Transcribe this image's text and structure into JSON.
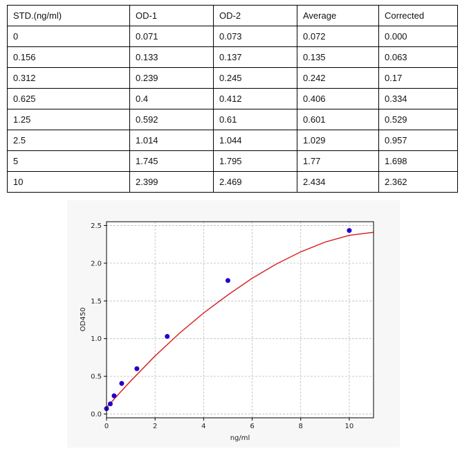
{
  "table": {
    "headers": [
      "STD.(ng/ml)",
      "OD-1",
      "OD-2",
      "Average",
      "Corrected"
    ],
    "rows": [
      [
        "0",
        "0.071",
        "0.073",
        "0.072",
        "0.000"
      ],
      [
        "0.156",
        "0.133",
        "0.137",
        "0.135",
        "0.063"
      ],
      [
        "0.312",
        "0.239",
        "0.245",
        "0.242",
        "0.17"
      ],
      [
        "0.625",
        "0.4",
        "0.412",
        "0.406",
        "0.334"
      ],
      [
        "1.25",
        "0.592",
        "0.61",
        "0.601",
        "0.529"
      ],
      [
        "2.5",
        "1.014",
        "1.044",
        "1.029",
        "0.957"
      ],
      [
        "5",
        "1.745",
        "1.795",
        "1.77",
        "1.698"
      ],
      [
        "10",
        "2.399",
        "2.469",
        "2.434",
        "2.362"
      ]
    ]
  },
  "chart_data": {
    "type": "scatter",
    "title": "",
    "xlabel": "ng/ml",
    "ylabel": "OD450",
    "xlim": [
      0,
      11
    ],
    "ylim": [
      -0.05,
      2.55
    ],
    "x_ticks": [
      0,
      2,
      4,
      6,
      8,
      10
    ],
    "y_ticks": [
      0.0,
      0.5,
      1.0,
      1.5,
      2.0,
      2.5
    ],
    "y_tick_labels": [
      "0.0",
      "0.5",
      "1.0",
      "1.5",
      "2.0",
      "2.5"
    ],
    "grid": true,
    "points": {
      "x": [
        0,
        0.156,
        0.312,
        0.625,
        1.25,
        2.5,
        5,
        10
      ],
      "y": [
        0.072,
        0.135,
        0.242,
        0.406,
        0.601,
        1.029,
        1.77,
        2.434
      ]
    },
    "fit_curve": {
      "x": [
        0,
        0.5,
        1,
        2,
        3,
        4,
        5,
        6,
        7,
        8,
        9,
        10,
        11
      ],
      "y": [
        0.085,
        0.265,
        0.44,
        0.77,
        1.07,
        1.34,
        1.58,
        1.8,
        1.99,
        2.15,
        2.28,
        2.37,
        2.41
      ]
    },
    "colors": {
      "points": "#2200cc",
      "curve": "#d62728",
      "grid": "#bbbbbb"
    }
  }
}
